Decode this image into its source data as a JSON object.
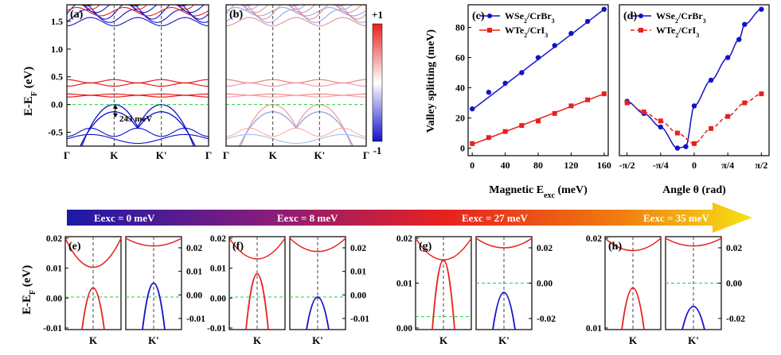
{
  "colors": {
    "red": "#e8201e",
    "blue": "#1212c8",
    "green": "#2ecc40",
    "grid": "#444444"
  },
  "labels": {
    "a": "(a)",
    "b": "(b)",
    "c": "(c)",
    "d": "(d)",
    "e": "(e)",
    "f": "(f)",
    "g": "(g)",
    "h": "(h)"
  },
  "band_axis": {
    "ylabel": "E-E",
    "ylabel_sub": "F",
    "ylabel_tail": " (eV)",
    "ylim": [
      -0.75,
      1.8
    ],
    "yticks": [
      -0.5,
      0.0,
      0.5,
      1.0,
      1.5
    ],
    "ytick_labels": [
      "-0.5",
      "0.0",
      "0.5",
      "1.0",
      "1.5"
    ],
    "kpoints": [
      "Γ",
      "K",
      "K'",
      "Γ"
    ],
    "gap_label": "243 meV",
    "colorbar_max": "+1",
    "colorbar_min": "-1"
  },
  "chart_data": [
    {
      "type": "line",
      "panel": "c",
      "title": "(c)",
      "xlabel": "Magnetic E",
      "xlabel_sub": "exc",
      "xlabel_tail": " (meV)",
      "ylabel": "Valley splitting (meV)",
      "xlim": [
        -5,
        165
      ],
      "ylim": [
        -5,
        95
      ],
      "xticks": [
        0,
        40,
        80,
        120,
        160
      ],
      "yticks": [
        0,
        20,
        40,
        60,
        80
      ],
      "series": [
        {
          "name": "WSe2/CrBr3",
          "legend_main": "WSe",
          "legend_s1": "2",
          "legend_mid": "/CrBr",
          "legend_s2": "3",
          "x": [
            0,
            20,
            40,
            60,
            80,
            100,
            120,
            140,
            160
          ],
          "values": [
            26,
            37,
            43,
            50,
            60,
            68,
            76,
            84,
            92
          ]
        },
        {
          "name": "WTe2/CrI3",
          "legend_main": "WTe",
          "legend_s1": "2",
          "legend_mid": "/CrI",
          "legend_s2": "3",
          "x": [
            0,
            20,
            40,
            60,
            80,
            100,
            120,
            140,
            160
          ],
          "values": [
            3,
            7,
            11,
            15,
            18,
            23,
            28,
            32,
            36
          ]
        }
      ]
    },
    {
      "type": "line",
      "panel": "d",
      "title": "(d)",
      "xlabel": "Angle θ (rad)",
      "xlim": [
        -1.75,
        1.75
      ],
      "ylim": [
        -5,
        95
      ],
      "xticks": [
        -1.5708,
        -0.7854,
        0,
        0.7854,
        1.5708
      ],
      "xtick_labels": [
        "-π/2",
        "-π/4",
        "0",
        "π/4",
        "π/2"
      ],
      "series": [
        {
          "name": "WSe2/CrBr3",
          "legend_main": "WSe",
          "legend_s1": "2",
          "legend_mid": "/CrBr",
          "legend_s2": "3",
          "x": [
            -1.5708,
            -1.1781,
            -0.7854,
            -0.3927,
            -0.1963,
            0,
            0.3927,
            0.7854,
            1.0472,
            1.1781,
            1.5708
          ],
          "values": [
            31,
            23,
            14,
            0,
            1,
            28,
            45,
            60,
            72,
            82,
            92
          ]
        },
        {
          "name": "WTe2/CrI3",
          "legend_main": "WTe",
          "legend_s1": "2",
          "legend_mid": "/CrI",
          "legend_s2": "3",
          "x": [
            -1.5708,
            -1.1781,
            -0.7854,
            -0.3927,
            0,
            0.3927,
            0.7854,
            1.1781,
            1.5708
          ],
          "values": [
            30,
            24,
            18,
            10,
            3,
            13,
            21,
            30,
            36
          ]
        }
      ]
    }
  ],
  "exchange_arrow": {
    "labels": [
      "Eexc = 0 meV",
      "Eexc = 8 meV",
      "Eexc = 27 meV",
      "Eexc = 35 meV"
    ]
  },
  "zoom_panels": [
    {
      "label": "(e)",
      "left_ticks": [
        "0.02",
        "0.01",
        "0.00",
        "-0.01"
      ],
      "right_ticks": [
        "0.02",
        "0.01",
        "0.00",
        "-0.01"
      ],
      "k_labels": [
        "K",
        "K'"
      ]
    },
    {
      "label": "(f)",
      "left_ticks": [
        "0.02",
        "0.01",
        "0.00",
        "-0.01"
      ],
      "right_ticks": [
        "0.02",
        "0.01",
        "0.00",
        "-0.01"
      ],
      "k_labels": [
        "K",
        "K'"
      ]
    },
    {
      "label": "(g)",
      "left_ticks": [
        "0.02",
        "0.01",
        "0.00"
      ],
      "right_ticks": [
        "0.02",
        "0.00",
        "-0.02"
      ],
      "k_labels": [
        "K",
        "K'"
      ]
    },
    {
      "label": "(h)",
      "left_ticks": [
        "0.02",
        "0.01"
      ],
      "right_ticks": [
        "0.02",
        "0.00",
        "-0.02"
      ],
      "k_labels": [
        "K",
        "K'"
      ]
    }
  ],
  "zoom_axis": {
    "ylabel": "E-E",
    "ylabel_sub": "F",
    "ylabel_tail": " (eV)"
  }
}
